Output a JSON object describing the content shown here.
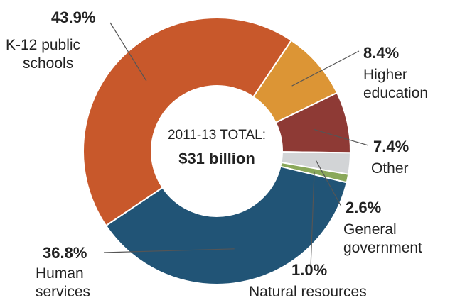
{
  "chart_data": {
    "type": "pie",
    "variant": "donut",
    "center": {
      "title": "2011-13 TOTAL:",
      "value": "$31 billion"
    },
    "slices": [
      {
        "label_lines": [
          "K-12 public",
          "schools"
        ],
        "value": 43.9,
        "value_label": "43.9%",
        "color": "#c8582b"
      },
      {
        "label_lines": [
          "Higher",
          "education"
        ],
        "value": 8.4,
        "value_label": "8.4%",
        "color": "#dc9535"
      },
      {
        "label_lines": [
          "Other"
        ],
        "value": 7.4,
        "value_label": "7.4%",
        "color": "#8e3a35"
      },
      {
        "label_lines": [
          "General",
          "government"
        ],
        "value": 2.6,
        "value_label": "2.6%",
        "color": "#d2d4d6"
      },
      {
        "label_lines": [
          "Natural resources"
        ],
        "value": 1.0,
        "value_label": "1.0%",
        "color": "#8aa85a"
      },
      {
        "label_lines": [
          "Human",
          "services"
        ],
        "value": 36.8,
        "value_label": "36.8%",
        "color": "#215476"
      }
    ]
  }
}
